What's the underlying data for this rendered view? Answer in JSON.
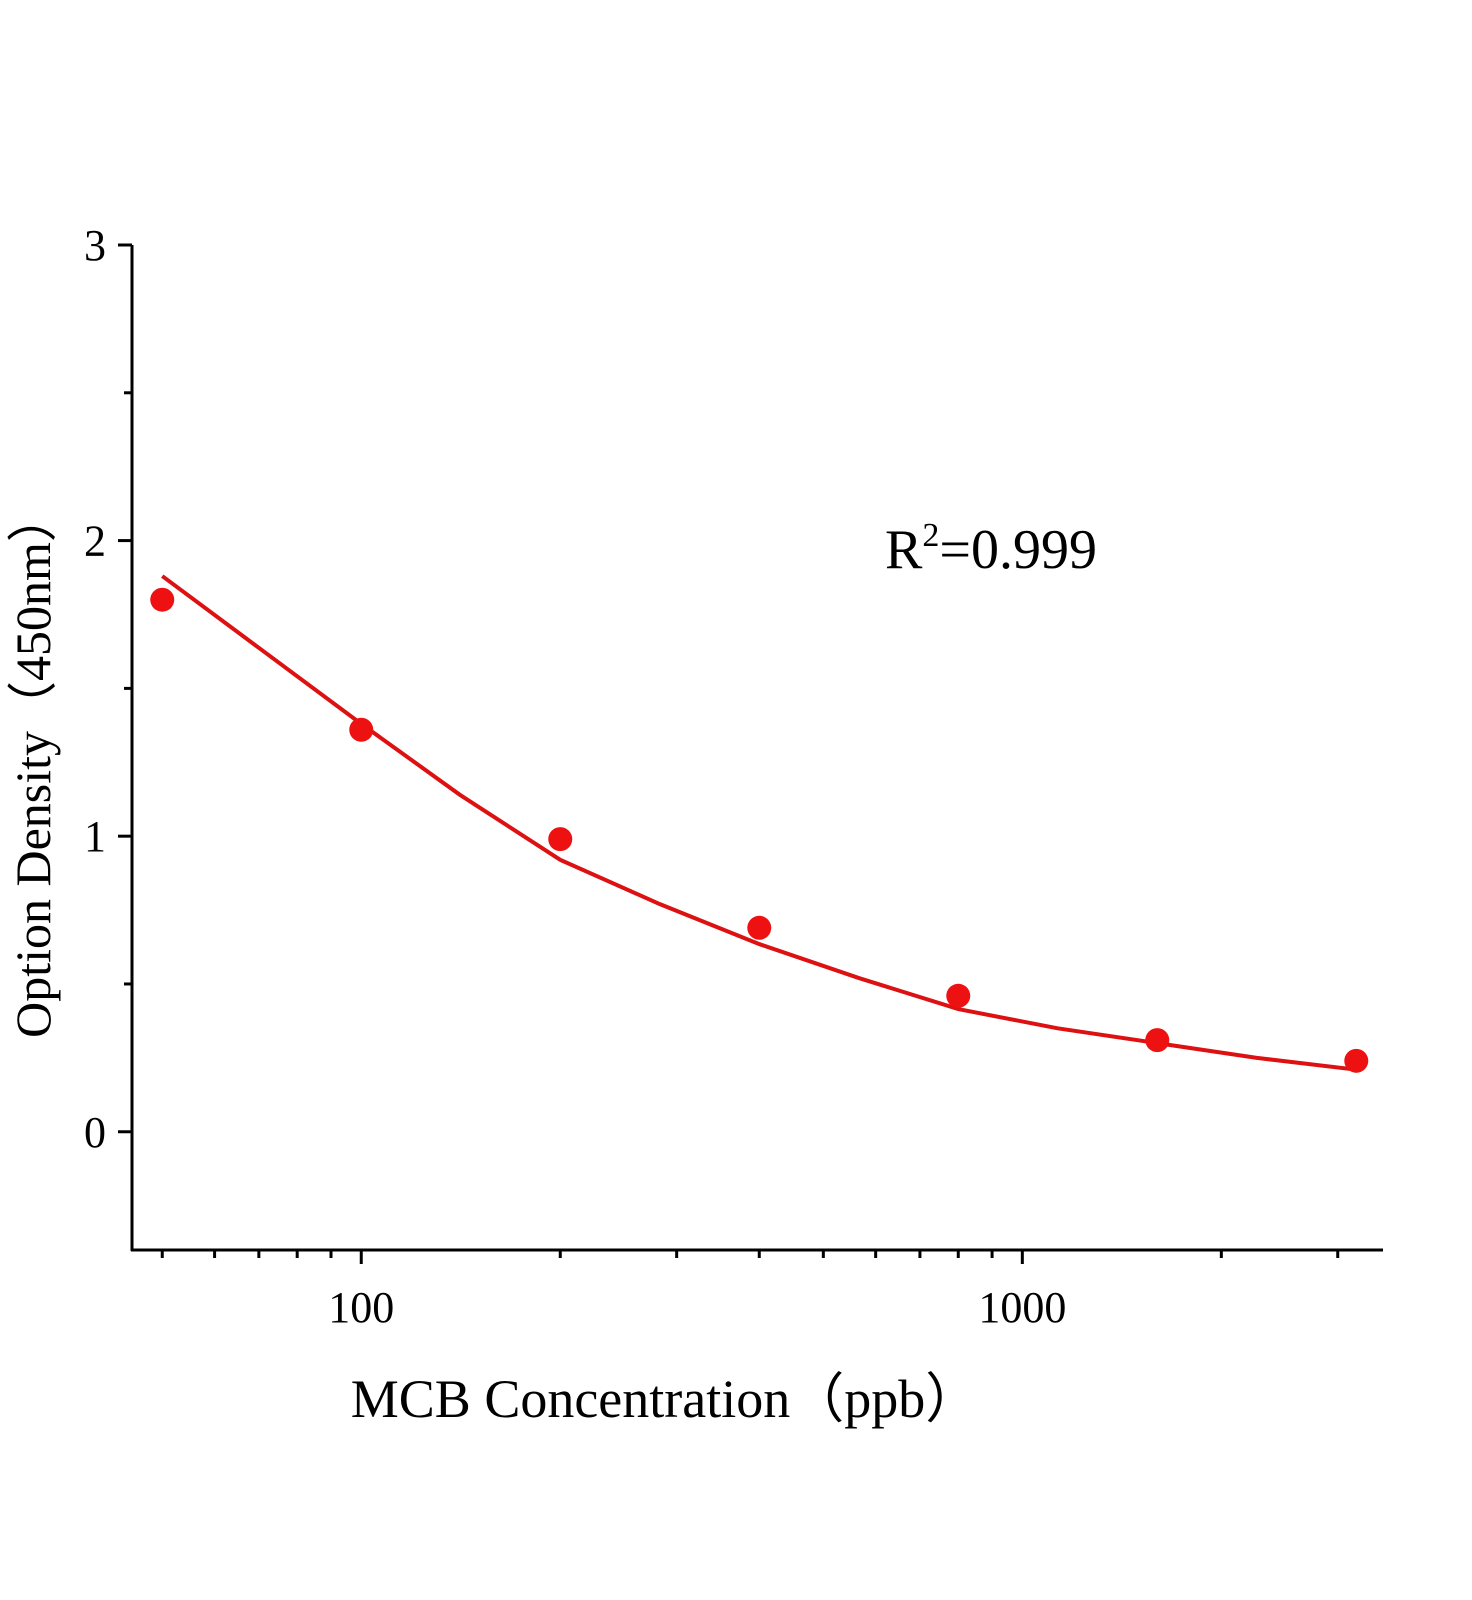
{
  "chart_data": {
    "type": "scatter",
    "x_label": "MCB Concentration（ppb）",
    "y_label": "Option Density（450nm）",
    "annotation": {
      "base": "R",
      "superscript": "2",
      "text": "=0.999"
    },
    "x_log": true,
    "xlim": [
      45,
      3500
    ],
    "xticks": [
      100,
      1000
    ],
    "xminorticks": [
      50,
      60,
      70,
      80,
      90,
      200,
      300,
      400,
      500,
      600,
      700,
      800,
      900,
      2000,
      3000
    ],
    "ylim": [
      -0.4,
      3
    ],
    "yticks": [
      0,
      1,
      2,
      3
    ],
    "yminorticks": [
      0.5,
      1.5,
      2.5
    ],
    "points": {
      "color": "#ee1111",
      "x": [
        50,
        100,
        200,
        400,
        800,
        1600,
        3200
      ],
      "values": [
        1.8,
        1.36,
        0.99,
        0.69,
        0.46,
        0.31,
        0.24
      ]
    },
    "fit": {
      "color": "#dd1111",
      "x": [
        50,
        70.7,
        100,
        141,
        200,
        283,
        400,
        566,
        800,
        1131,
        1600,
        2263,
        3200
      ],
      "values": [
        1.88,
        1.63,
        1.38,
        1.14,
        0.92,
        0.77,
        0.635,
        0.52,
        0.415,
        0.35,
        0.3,
        0.25,
        0.21
      ]
    }
  }
}
